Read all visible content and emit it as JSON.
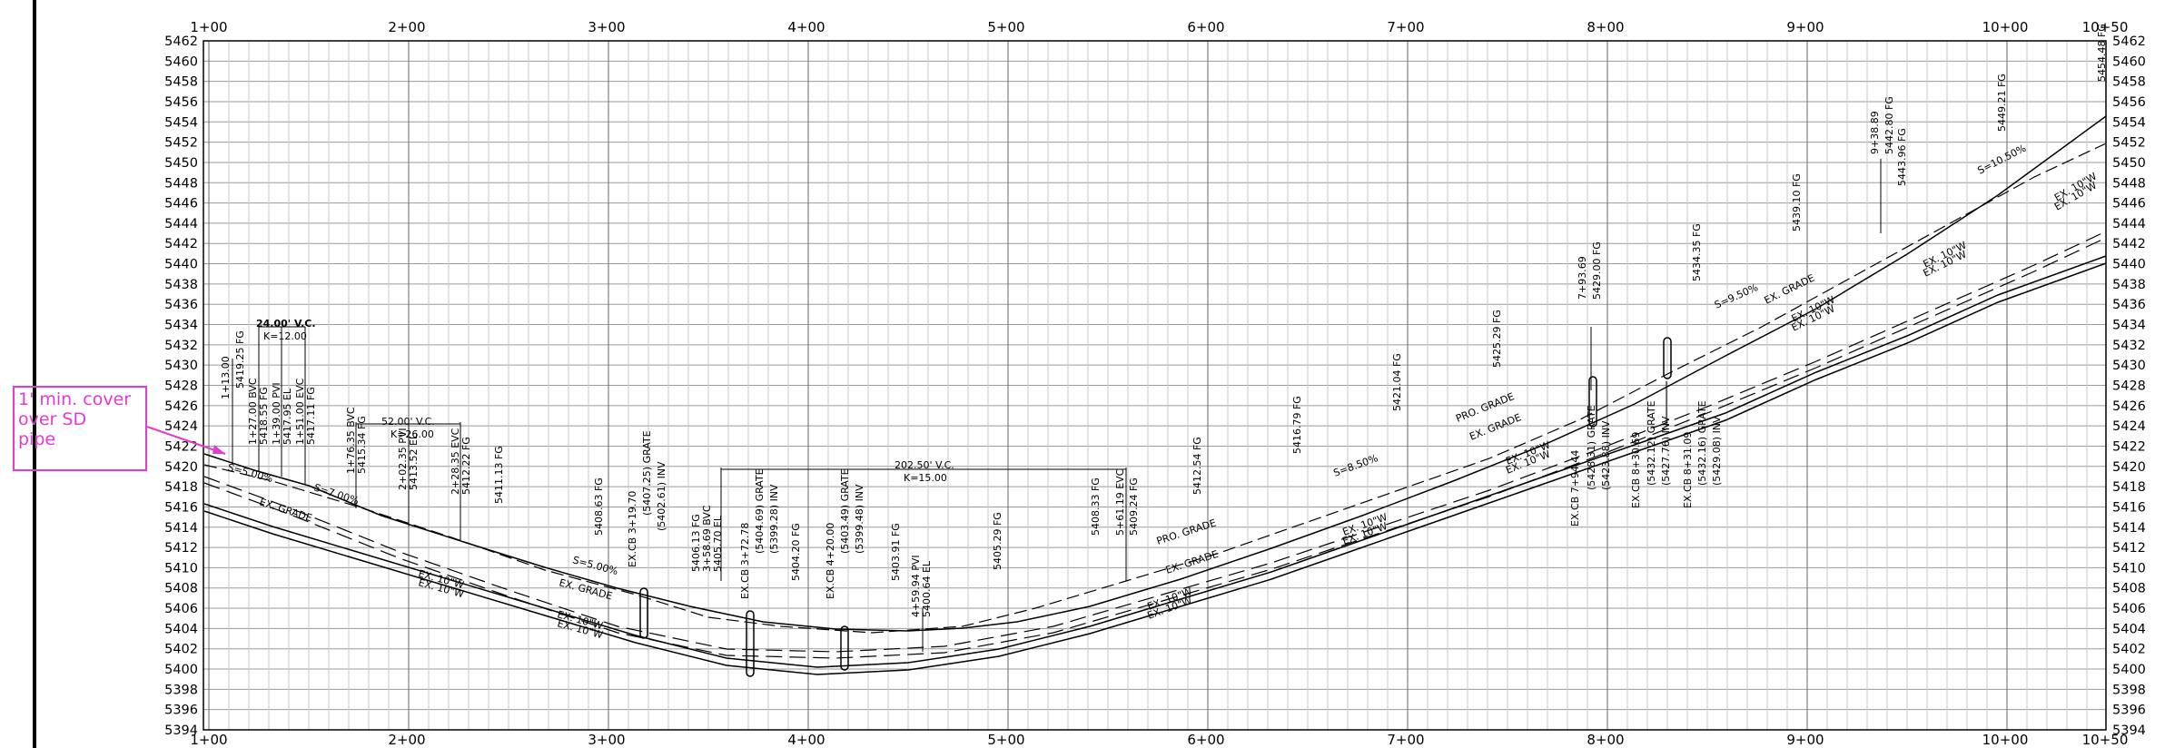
{
  "station_labels_top": [
    "1+00",
    "2+00",
    "3+00",
    "4+00",
    "5+00",
    "6+00",
    "7+00",
    "8+00",
    "9+00",
    "10+00",
    "10+50"
  ],
  "station_labels_bottom": [
    "1+00",
    "2+00",
    "3+00",
    "4+00",
    "5+00",
    "6+00",
    "7+00",
    "8+00",
    "9+00",
    "10+00",
    "10+50"
  ],
  "elevation_labels": [
    "5462",
    "5460",
    "5458",
    "5456",
    "5454",
    "5452",
    "5450",
    "5448",
    "5446",
    "5444",
    "5442",
    "5440",
    "5438",
    "5436",
    "5434",
    "5432",
    "5430",
    "5428",
    "5426",
    "5424",
    "5422",
    "5420",
    "5418",
    "5416",
    "5414",
    "5412",
    "5410",
    "5408",
    "5406",
    "5404",
    "5402",
    "5400",
    "5398",
    "5396",
    "5394"
  ],
  "callout": {
    "line1": "1' min. cover",
    "line2": "over SD",
    "line3": "pipe",
    "color": "#e23bd0"
  },
  "annotations": {
    "vc1_len": "24.00' V.C.",
    "vc1_k": "K=12.00",
    "vc2_len": "52.00' V.C.",
    "vc2_k": "K=26.00",
    "vc3_len": "202.50' V.C.",
    "vc3_k": "K=15.00",
    "slope_a": "S=5.00%",
    "slope_b": "S=7.00%",
    "slope_c": "S=5.00%",
    "slope_d": "S=8.50%",
    "slope_e": "S=9.50%",
    "slope_f": "S=10.50%",
    "ex_grade": "EX. GRADE",
    "pro_grade": "PRO. GRADE",
    "ex10w": "EX. 10\"W",
    "sta_113": "1+13.00",
    "fg_541925": "5419.25  FG",
    "bvc_127": "1+27.00  BVC",
    "fg_541855": "5418.55  FG",
    "pvi_139": "1+39.00  PVI",
    "el_541795": "5417.95  EL",
    "evc_151": "1+51.00  EVC",
    "fg_541711": "5417.11  FG",
    "bvc_176": "1+76.35  BVC",
    "fg_541534": "5415.34  FG",
    "pvi_202": "2+02.35  PVI",
    "el_541352": "5413.52  EL",
    "evc_228": "2+28.35  EVC",
    "fg_541222": "5412.22  FG",
    "fg_541113": "5411.13  FG",
    "fg_540863": "5408.63  FG",
    "excb_319": "EX.CB  3+19.70",
    "grate_540725": "(5407.25)  GRATE",
    "inv_540261": "(5402.61)  INV",
    "fg_540613": "5406.13  FG",
    "bvc_358": "3+58.69  BVC",
    "el_540570": "5405.70  EL",
    "excb_372": "EX.CB  3+72.78",
    "grate_540469": "(5404.69)  GRATE",
    "inv_539928": "(5399.28)  INV",
    "fg_540420": "5404.20  FG",
    "excb_420": "EX.CB  4+20.00",
    "grate_540349": "(5403.49)  GRATE",
    "inv_539948": "(5399.48)  INV",
    "fg_540391": "5403.91  FG",
    "pvi_459": "4+59.94  PVI",
    "el_540064": "5400.64  EL",
    "fg_540529": "5405.29  FG",
    "fg_540833": "5408.33  FG",
    "evc_561": "5+61.19  EVC",
    "fg_540924": "5409.24  FG",
    "fg_541254": "5412.54  FG",
    "fg_541679": "5416.79  FG",
    "fg_542104": "5421.04  FG",
    "fg_542529": "5425.29  FG",
    "sta_793": "7+93.69",
    "fg_542900": "5429.00  FG",
    "excb_794": "EX.CB  7+94.44",
    "grate_542831": "(5428.31)  GRATE",
    "inv_542388": "(5423.88)  INV",
    "excb_830": "EX.CB  8+30.69",
    "grate_543212": "(5432.12)  GRATE",
    "inv_542776": "(5427.76)  INV",
    "excb_831": "EX.CB  8+31.09",
    "grate_543216": "(5432.16)  GRATE",
    "inv_542908": "(5429.08)  INV",
    "fg_543435": "5434.35  FG",
    "fg_543910": "5439.10  FG",
    "sta_938": "9+38.89",
    "fg_544280": "5442.80  FG",
    "fg_544396": "5443.96  FG",
    "fg_544921": "5449.21  FG",
    "fg_545448": "5454.48  FG"
  }
}
